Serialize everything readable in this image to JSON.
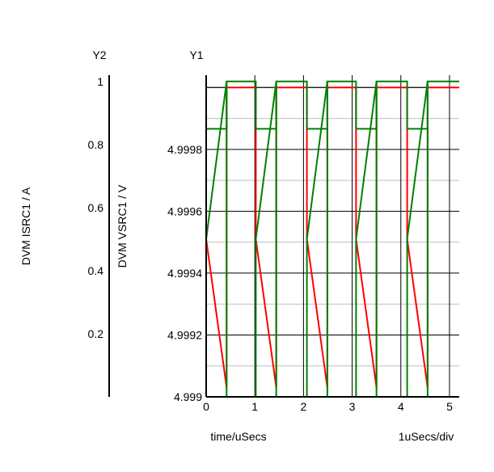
{
  "chart_data": {
    "type": "line",
    "y2_axis": {
      "header": "Y2",
      "label": "DVM ISRC1 / A",
      "ticks": [
        "0.2",
        "0.4",
        "0.6",
        "0.8",
        "1"
      ],
      "tick_values": [
        0.2,
        0.4,
        0.6,
        0.8,
        1.0
      ],
      "ylim": [
        0,
        1.02
      ]
    },
    "y1_axis": {
      "header": "Y1",
      "label": "DVM VSRC1 / V",
      "ticks": [
        "4.999",
        "4.9992",
        "4.9994",
        "4.9996",
        "4.9998"
      ],
      "tick_values": [
        4.999,
        4.9992,
        4.9994,
        4.9996,
        4.9998
      ],
      "ylim": [
        4.999,
        5.00004
      ]
    },
    "x_axis": {
      "label": "time/uSecs",
      "scale_label": "1uSecs/div",
      "ticks": [
        "0",
        "1",
        "2",
        "3",
        "4",
        "5"
      ],
      "tick_values": [
        0,
        1,
        2,
        3,
        4,
        5
      ],
      "xlim": [
        0,
        5.2
      ]
    },
    "grid": true,
    "series": [
      {
        "axis": "y1",
        "color": "#ff0000",
        "x": [
          0,
          0,
          0.42,
          0.42,
          1.02,
          1.02,
          1.44,
          1.44,
          2.07,
          2.07,
          2.49,
          2.49,
          3.08,
          3.08,
          3.5,
          3.5,
          4.13,
          4.13,
          4.55,
          4.55,
          5.2
        ],
        "y": [
          5.0,
          4.99951,
          4.99903,
          5.0,
          5.0,
          4.99951,
          4.99903,
          5.0,
          5.0,
          4.99951,
          4.99903,
          5.0,
          5.0,
          4.99951,
          4.99903,
          5.0,
          5.0,
          4.99951,
          4.99903,
          5.0,
          5.0
        ]
      },
      {
        "axis": "y2",
        "color": "#008000",
        "x": [
          0,
          0,
          0.42,
          0.42,
          1.02,
          1.02,
          1.44,
          1.44,
          2.07,
          2.07,
          2.49,
          2.49,
          3.08,
          3.08,
          3.5,
          3.5,
          4.13,
          4.13,
          4.55,
          4.55,
          5.2
        ],
        "y": [
          0,
          0.5,
          1.0,
          0,
          0,
          0.5,
          1.0,
          0,
          0,
          0.5,
          1.0,
          0,
          0,
          0.5,
          1.0,
          0,
          0,
          0.5,
          1.0,
          0,
          0
        ]
      },
      {
        "axis": "y2",
        "color": "#008000",
        "x": [
          0,
          0,
          0.42,
          0.42,
          1.02,
          1.02,
          1.44,
          1.44,
          2.07,
          2.07,
          2.49,
          2.49,
          3.08,
          3.08,
          3.5,
          3.5,
          4.13,
          4.13,
          4.55,
          4.55,
          5.2
        ],
        "y": [
          0,
          0.85,
          0.85,
          1.0,
          1.0,
          0.85,
          0.85,
          1.0,
          1.0,
          0.85,
          0.85,
          1.0,
          1.0,
          0.85,
          0.85,
          1.0,
          1.0,
          0.85,
          0.85,
          1.0,
          1.0
        ]
      }
    ]
  }
}
